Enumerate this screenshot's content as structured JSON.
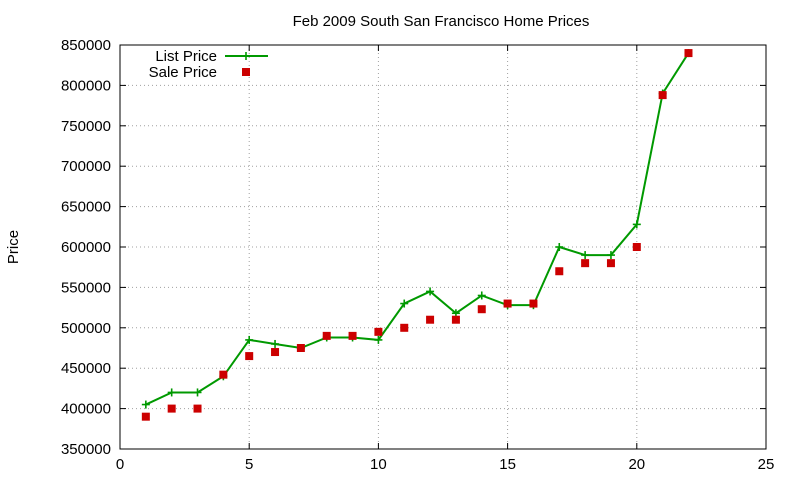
{
  "chart_data": {
    "type": "line",
    "title": "Feb 2009 South San Francisco Home Prices",
    "xlabel": "",
    "ylabel": "Price",
    "xlim": [
      0,
      25
    ],
    "ylim": [
      350000,
      850000
    ],
    "x_ticks": [
      0,
      5,
      10,
      15,
      20,
      25
    ],
    "y_ticks": [
      350000,
      400000,
      450000,
      500000,
      550000,
      600000,
      650000,
      700000,
      750000,
      800000,
      850000
    ],
    "grid": true,
    "grid_style": "dotted",
    "legend_position": "top-left",
    "series": [
      {
        "name": "List Price",
        "style": "line+points",
        "marker": "plus",
        "color": "#009900",
        "x": [
          1,
          2,
          3,
          4,
          5,
          6,
          7,
          8,
          9,
          10,
          11,
          12,
          13,
          14,
          15,
          16,
          17,
          18,
          19,
          20,
          21,
          22
        ],
        "y": [
          405000,
          420000,
          420000,
          440000,
          485000,
          480000,
          475000,
          488000,
          488000,
          485000,
          530000,
          545000,
          518000,
          540000,
          528000,
          528000,
          600000,
          590000,
          590000,
          628000,
          790000,
          840000
        ]
      },
      {
        "name": "Sale Price",
        "style": "points",
        "marker": "square",
        "color": "#cc0000",
        "x": [
          1,
          2,
          3,
          4,
          5,
          6,
          7,
          8,
          9,
          10,
          11,
          12,
          13,
          14,
          15,
          16,
          17,
          18,
          19,
          20,
          21,
          22
        ],
        "y": [
          390000,
          400000,
          400000,
          442000,
          465000,
          470000,
          475000,
          490000,
          490000,
          495000,
          500000,
          510000,
          510000,
          523000,
          530000,
          530000,
          570000,
          580000,
          580000,
          600000,
          788000,
          840000
        ]
      }
    ]
  }
}
